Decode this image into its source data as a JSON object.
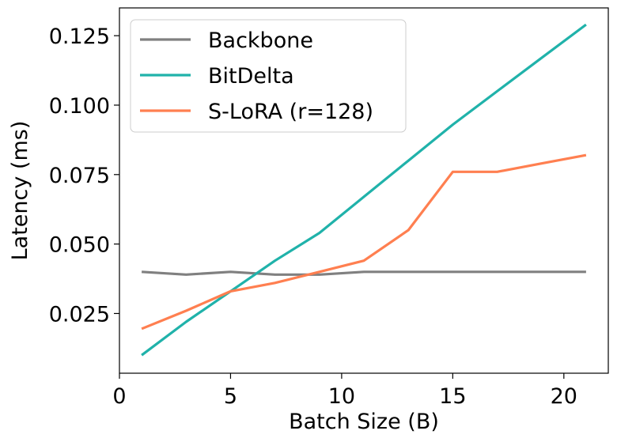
{
  "chart_data": {
    "type": "line",
    "title": "",
    "xlabel": "Batch Size (B)",
    "ylabel": "Latency (ms)",
    "xlim": [
      0,
      22
    ],
    "ylim": [
      0.0035,
      0.135
    ],
    "x_ticks": [
      0,
      5,
      10,
      15,
      20
    ],
    "x_tick_labels": [
      "0",
      "5",
      "10",
      "15",
      "20"
    ],
    "y_ticks": [
      0.025,
      0.05,
      0.075,
      0.1,
      0.125
    ],
    "y_tick_labels": [
      "0.025",
      "0.050",
      "0.075",
      "0.100",
      "0.125"
    ],
    "grid": false,
    "legend_position": "top-left",
    "series": [
      {
        "name": "Backbone",
        "color": "#808080",
        "x": [
          1,
          3,
          5,
          7,
          9,
          11,
          13,
          15,
          17,
          19,
          21
        ],
        "y": [
          0.04,
          0.039,
          0.04,
          0.039,
          0.039,
          0.04,
          0.04,
          0.04,
          0.04,
          0.04,
          0.04
        ]
      },
      {
        "name": "BitDelta",
        "color": "#20b2aa",
        "x": [
          1,
          3,
          5,
          7,
          9,
          11,
          13,
          15,
          17,
          19,
          21
        ],
        "y": [
          0.01,
          0.022,
          0.033,
          0.044,
          0.054,
          0.067,
          0.08,
          0.093,
          0.105,
          0.117,
          0.129
        ]
      },
      {
        "name": "S-LoRA (r=128)",
        "color": "#ff7f50",
        "x": [
          1,
          3,
          5,
          7,
          9,
          11,
          13,
          15,
          17,
          19,
          21
        ],
        "y": [
          0.0195,
          0.026,
          0.033,
          0.036,
          0.04,
          0.044,
          0.055,
          0.076,
          0.076,
          0.079,
          0.082
        ]
      }
    ]
  }
}
